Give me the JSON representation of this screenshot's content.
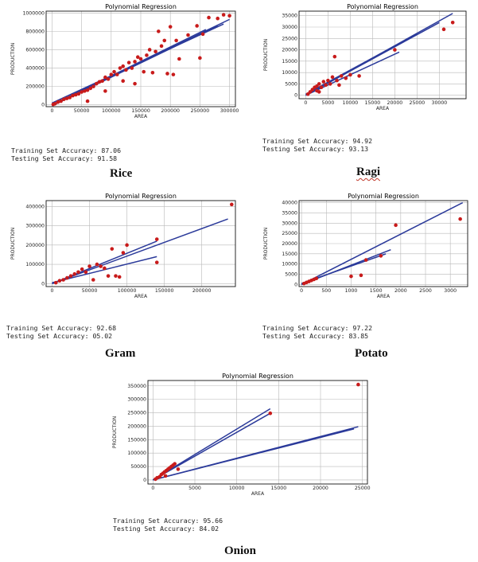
{
  "colors": {
    "line": "#2b3a9a",
    "point": "#c81b1b",
    "grid": "#b9b9b9",
    "frame": "#111111"
  },
  "chart_data": [
    {
      "id": "rice",
      "type": "scatter",
      "title": "Polynomial Regression",
      "xlabel": "AREA",
      "ylabel": "PRODUCTION",
      "crop_label": "Rice",
      "train_label": "Training Set Accuracy:",
      "train_acc": "87.06",
      "test_label": "Testing Set Accuracy:",
      "test_acc": "91.58",
      "xlim": [
        -10000,
        310000
      ],
      "ylim": [
        -20000,
        1020000
      ],
      "xticks": [
        0,
        50000,
        100000,
        150000,
        200000,
        250000,
        300000
      ],
      "yticks": [
        0,
        200000,
        400000,
        600000,
        800000,
        1000000
      ],
      "grid": true,
      "points": [
        [
          2000,
          5000
        ],
        [
          5000,
          12000
        ],
        [
          10000,
          30000
        ],
        [
          15000,
          40000
        ],
        [
          20000,
          60000
        ],
        [
          25000,
          70000
        ],
        [
          30000,
          80000
        ],
        [
          35000,
          100000
        ],
        [
          40000,
          110000
        ],
        [
          45000,
          120000
        ],
        [
          50000,
          140000
        ],
        [
          55000,
          150000
        ],
        [
          60000,
          160000
        ],
        [
          65000,
          180000
        ],
        [
          70000,
          200000
        ],
        [
          75000,
          230000
        ],
        [
          80000,
          250000
        ],
        [
          85000,
          260000
        ],
        [
          90000,
          300000
        ],
        [
          95000,
          280000
        ],
        [
          100000,
          330000
        ],
        [
          105000,
          360000
        ],
        [
          110000,
          330000
        ],
        [
          115000,
          400000
        ],
        [
          120000,
          420000
        ],
        [
          125000,
          380000
        ],
        [
          130000,
          460000
        ],
        [
          135000,
          400000
        ],
        [
          140000,
          470000
        ],
        [
          145000,
          520000
        ],
        [
          150000,
          500000
        ],
        [
          155000,
          360000
        ],
        [
          160000,
          540000
        ],
        [
          165000,
          600000
        ],
        [
          170000,
          350000
        ],
        [
          175000,
          580000
        ],
        [
          180000,
          800000
        ],
        [
          185000,
          640000
        ],
        [
          190000,
          700000
        ],
        [
          195000,
          340000
        ],
        [
          200000,
          850000
        ],
        [
          205000,
          330000
        ],
        [
          210000,
          700000
        ],
        [
          215000,
          500000
        ],
        [
          230000,
          760000
        ],
        [
          245000,
          860000
        ],
        [
          250000,
          510000
        ],
        [
          255000,
          770000
        ],
        [
          265000,
          950000
        ],
        [
          280000,
          940000
        ],
        [
          290000,
          980000
        ],
        [
          300000,
          970000
        ],
        [
          60000,
          40000
        ],
        [
          90000,
          150000
        ],
        [
          120000,
          260000
        ],
        [
          140000,
          230000
        ]
      ],
      "lines": [
        [
          [
            0,
            0
          ],
          [
            300000,
            930000
          ]
        ],
        [
          [
            0,
            20000
          ],
          [
            290000,
            880000
          ]
        ],
        [
          [
            0,
            -10000
          ],
          [
            280000,
            860000
          ]
        ],
        [
          [
            10000,
            30000
          ],
          [
            260000,
            820000
          ]
        ]
      ]
    },
    {
      "id": "ragi",
      "type": "scatter",
      "title": "Polynomial Regression",
      "xlabel": "AREA",
      "ylabel": "PRODUCTION",
      "crop_label": "Ragi",
      "train_label": "Training Set Accuracy:",
      "train_acc": "94.92",
      "test_label": "Testing Set Accuracy:",
      "test_acc": "93.13",
      "xlim": [
        -1500,
        36000
      ],
      "ylim": [
        -1500,
        37000
      ],
      "xticks": [
        0,
        5000,
        10000,
        15000,
        20000,
        25000,
        30000
      ],
      "yticks": [
        0,
        5000,
        10000,
        15000,
        20000,
        25000,
        30000,
        35000
      ],
      "grid": true,
      "points": [
        [
          500,
          500
        ],
        [
          1000,
          1500
        ],
        [
          1500,
          2500
        ],
        [
          2000,
          3500
        ],
        [
          2500,
          4000
        ],
        [
          3000,
          5000
        ],
        [
          3500,
          3500
        ],
        [
          4000,
          6000
        ],
        [
          4500,
          4500
        ],
        [
          5000,
          6500
        ],
        [
          5500,
          5000
        ],
        [
          6000,
          8000
        ],
        [
          6500,
          17000
        ],
        [
          7000,
          6500
        ],
        [
          7500,
          4500
        ],
        [
          8000,
          8500
        ],
        [
          9000,
          7500
        ],
        [
          10000,
          9000
        ],
        [
          12000,
          8500
        ],
        [
          20000,
          20000
        ],
        [
          31000,
          29000
        ],
        [
          33000,
          32000
        ],
        [
          2500,
          2000
        ],
        [
          3000,
          1500
        ]
      ],
      "lines": [
        [
          [
            0,
            0
          ],
          [
            33000,
            36000
          ]
        ],
        [
          [
            0,
            0
          ],
          [
            30000,
            32000
          ]
        ],
        [
          [
            0,
            0
          ],
          [
            21000,
            19000
          ]
        ],
        [
          [
            0,
            500
          ],
          [
            25000,
            27000
          ]
        ]
      ]
    },
    {
      "id": "gram",
      "type": "scatter",
      "title": "Polynomial Regression",
      "xlabel": "AREA",
      "ylabel": "PRODUCTION",
      "crop_label": "Gram",
      "train_label": "Training Set Accuracy:",
      "train_acc": "92.68",
      "test_label": "Testing Set Accuracy:",
      "test_acc": "05.02",
      "xlim": [
        -8000,
        245000
      ],
      "ylim": [
        -15000,
        430000
      ],
      "xticks": [
        0,
        50000,
        100000,
        150000,
        200000
      ],
      "yticks": [
        0,
        100000,
        200000,
        300000,
        400000
      ],
      "grid": true,
      "points": [
        [
          5000,
          5000
        ],
        [
          10000,
          15000
        ],
        [
          15000,
          20000
        ],
        [
          20000,
          30000
        ],
        [
          25000,
          40000
        ],
        [
          30000,
          50000
        ],
        [
          35000,
          60000
        ],
        [
          40000,
          75000
        ],
        [
          45000,
          60000
        ],
        [
          50000,
          90000
        ],
        [
          55000,
          20000
        ],
        [
          60000,
          100000
        ],
        [
          65000,
          90000
        ],
        [
          70000,
          80000
        ],
        [
          75000,
          40000
        ],
        [
          80000,
          180000
        ],
        [
          85000,
          40000
        ],
        [
          90000,
          35000
        ],
        [
          95000,
          160000
        ],
        [
          100000,
          200000
        ],
        [
          140000,
          230000
        ],
        [
          140000,
          110000
        ],
        [
          240000,
          410000
        ]
      ],
      "lines": [
        [
          [
            0,
            0
          ],
          [
            235000,
            335000
          ]
        ],
        [
          [
            0,
            0
          ],
          [
            140000,
            220000
          ]
        ],
        [
          [
            0,
            5000
          ],
          [
            140000,
            140000
          ]
        ]
      ]
    },
    {
      "id": "potato",
      "type": "scatter",
      "title": "Polynomial Regression",
      "xlabel": "AREA",
      "ylabel": "PRODUCTION",
      "crop_label": "Potato",
      "train_label": "Training Set Accuracy:",
      "train_acc": "97.22",
      "test_label": "Testing Set Accuracy:",
      "test_acc": "83.85",
      "xlim": [
        -50,
        3350
      ],
      "ylim": [
        -1000,
        41000
      ],
      "xticks": [
        0,
        500,
        1000,
        1500,
        2000,
        2500,
        3000
      ],
      "yticks": [
        0,
        5000,
        10000,
        15000,
        20000,
        25000,
        30000,
        35000,
        40000
      ],
      "grid": true,
      "points": [
        [
          50,
          500
        ],
        [
          100,
          1000
        ],
        [
          150,
          1500
        ],
        [
          200,
          2000
        ],
        [
          250,
          2500
        ],
        [
          300,
          3000
        ],
        [
          1000,
          4000
        ],
        [
          1200,
          4500
        ],
        [
          1300,
          12000
        ],
        [
          1600,
          14000
        ],
        [
          1900,
          29000
        ],
        [
          3200,
          32000
        ]
      ],
      "lines": [
        [
          [
            0,
            0
          ],
          [
            3250,
            40000
          ]
        ],
        [
          [
            0,
            0
          ],
          [
            1800,
            17000
          ]
        ],
        [
          [
            0,
            500
          ],
          [
            1700,
            15000
          ]
        ]
      ]
    },
    {
      "id": "onion",
      "type": "scatter",
      "title": "Polynomial Regression",
      "xlabel": "AREA",
      "ylabel": "PRODUCTION",
      "crop_label": "Onion",
      "train_label": "Training Set Accuracy:",
      "train_acc": "95.66",
      "test_label": "Testing Set Accuracy:",
      "test_acc": "84.02",
      "xlim": [
        -600,
        25600
      ],
      "ylim": [
        -15000,
        370000
      ],
      "xticks": [
        0,
        5000,
        10000,
        15000,
        20000,
        25000
      ],
      "yticks": [
        0,
        50000,
        100000,
        150000,
        200000,
        250000,
        300000,
        350000
      ],
      "grid": true,
      "points": [
        [
          300,
          3000
        ],
        [
          500,
          8000
        ],
        [
          800,
          12000
        ],
        [
          1000,
          20000
        ],
        [
          1200,
          25000
        ],
        [
          1400,
          30000
        ],
        [
          1600,
          35000
        ],
        [
          1800,
          40000
        ],
        [
          2000,
          45000
        ],
        [
          2200,
          50000
        ],
        [
          2400,
          55000
        ],
        [
          2600,
          60000
        ],
        [
          3000,
          40000
        ],
        [
          1500,
          15000
        ],
        [
          14000,
          248000
        ],
        [
          24500,
          355000
        ]
      ],
      "lines": [
        [
          [
            0,
            0
          ],
          [
            14000,
            265000
          ]
        ],
        [
          [
            0,
            0
          ],
          [
            24500,
            198000
          ]
        ],
        [
          [
            0,
            0
          ],
          [
            24000,
            190000
          ]
        ],
        [
          [
            0,
            0
          ],
          [
            14000,
            248000
          ]
        ]
      ]
    }
  ]
}
